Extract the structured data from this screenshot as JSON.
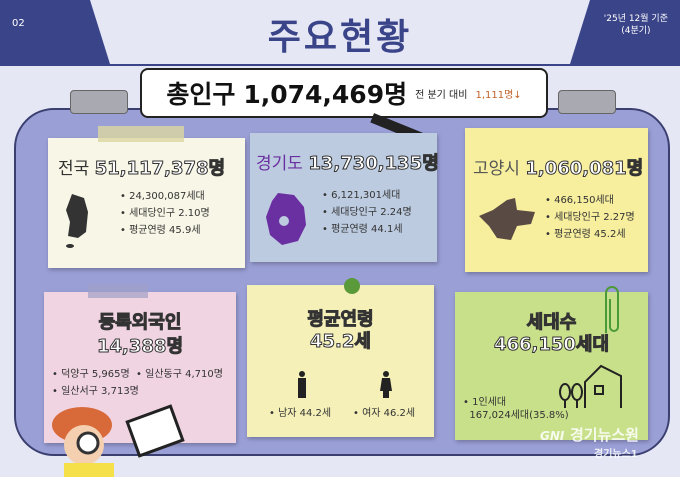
{
  "header": {
    "page_no": "02",
    "title": "주요현황",
    "date_line1": "'25년 12월 기준",
    "date_line2": "(4분기)"
  },
  "total": {
    "label": "총인구",
    "value": "1,074,469명",
    "compare_label": "전 분기 대비",
    "change": "1,111명↓"
  },
  "cards": {
    "nation": {
      "name": "전국",
      "population": "51,117,378명",
      "items": [
        "24,300,087세대",
        "세대당인구 2.10명",
        "평균연령 45.9세"
      ]
    },
    "gyeonggi": {
      "name": "경기도",
      "population": "13,730,135명",
      "items": [
        "6,121,301세대",
        "세대당인구 2.24명",
        "평균연령 44.1세"
      ]
    },
    "goyang": {
      "name": "고양시",
      "population": "1,060,081명",
      "items": [
        "466,150세대",
        "세대당인구 2.27명",
        "평균연령 45.2세"
      ]
    },
    "foreign": {
      "title": "등록외국인",
      "value": "14,388명",
      "items": [
        "덕양구 5,965명",
        "일산동구 4,710명",
        "일산서구 3,713명"
      ]
    },
    "age": {
      "title": "평균연령",
      "value": "45.2세",
      "male": "남자 44.2세",
      "female": "여자 46.2세"
    },
    "household": {
      "title": "세대수",
      "value": "466,150세대",
      "single_label": "1인세대",
      "single_value": "167,024세대(35.8%)"
    }
  },
  "watermark": {
    "brand": "경기뉴스원",
    "sub": "경기뉴스1",
    "logo": "GNI"
  },
  "colors": {
    "navy": "#3a4489",
    "board": "#9a9fd6",
    "down": "#c0622a"
  }
}
